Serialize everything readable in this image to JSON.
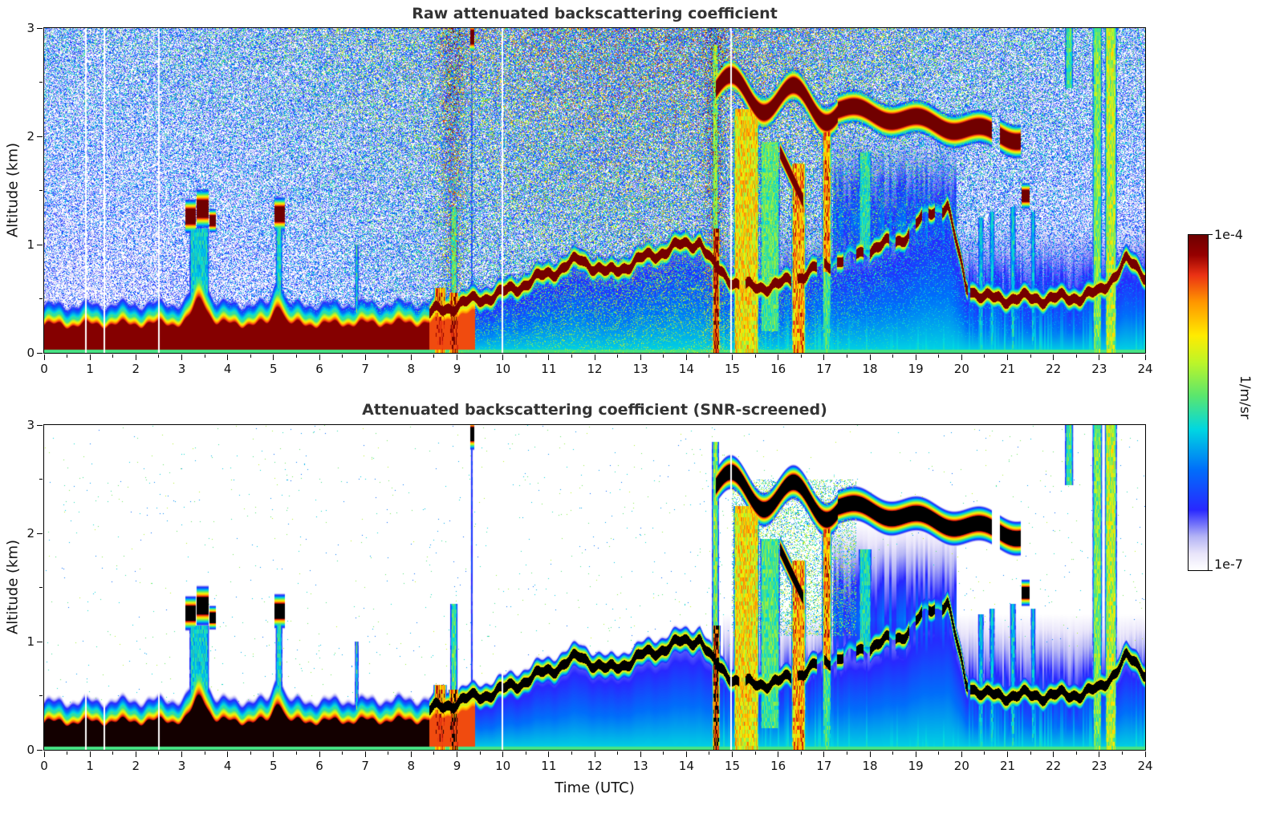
{
  "figure": {
    "background": "#ffffff"
  },
  "colorbar": {
    "max_label": "1e-4",
    "min_label": "1e-7",
    "units_label": "1/m/sr",
    "top_color": "#6e0000",
    "bottom_color": "#ffffff"
  },
  "chart_data": [
    {
      "type": "heatmap",
      "title": "Raw attenuated backscattering coefficient",
      "xlabel": "",
      "ylabel": "Altitude (km)",
      "x_range": [
        0,
        24
      ],
      "y_range": [
        0,
        3
      ],
      "x_ticks": [
        0,
        1,
        2,
        3,
        4,
        5,
        6,
        7,
        8,
        9,
        10,
        11,
        12,
        13,
        14,
        15,
        16,
        17,
        18,
        19,
        20,
        21,
        22,
        23,
        24
      ],
      "x_minor_step": 0.5,
      "y_ticks": [
        0,
        1,
        2,
        3
      ],
      "y_minor_step": 0.5,
      "value_scale": {
        "min": "1e-7",
        "max": "1e-4",
        "units": "1/m/sr",
        "scale": "log"
      },
      "grid": false,
      "legend": "shared colorbar right, 1e-7 to 1e-4 1/m/sr",
      "description": "Ceilometer attenuated backscatter, time (UTC) vs altitude (km). Strong aerosol layer (~1e-4 1/m/sr, dark red) from surface to ~0.35 km between 00-08 UTC, rising with convection to ~1.0 km by 14 UTC; shallow clouds at ~1.3 km near 03:10-03:45 and 05:05-05:15; strong surface plumes 08:30-09:05; cloud deck descending from ~2.45 km at 15 UTC to ~2.0 km at 21 UTC with precipitation/virga shafts 15-17 UTC; blue precipitation haze below 1.2 km after 15 UTC; deep precipitation columns to 3 km near 22:50-23:25; dense low-SNR noise speckle fills the free troposphere, warmer colored at higher altitude and midday."
    },
    {
      "type": "heatmap",
      "title": "Attenuated backscattering coefficient (SNR-screened)",
      "xlabel": "Time (UTC)",
      "ylabel": "Altitude (km)",
      "x_range": [
        0,
        24
      ],
      "y_range": [
        0,
        3
      ],
      "x_ticks": [
        0,
        1,
        2,
        3,
        4,
        5,
        6,
        7,
        8,
        9,
        10,
        11,
        12,
        13,
        14,
        15,
        16,
        17,
        18,
        19,
        20,
        21,
        22,
        23,
        24
      ],
      "x_minor_step": 0.5,
      "y_ticks": [
        0,
        1,
        2,
        3
      ],
      "y_minor_step": 0.5,
      "value_scale": {
        "min": "1e-7",
        "max": "1e-4",
        "units": "1/m/sr",
        "scale": "log"
      },
      "grid": false,
      "legend": "shared colorbar right, 1e-7 to 1e-4 1/m/sr",
      "description": "Same field after SNR screening: low-SNR noise removed (white background); saturated returns (boundary-layer aerosol core, boundary-layer top line and cloud layers) appear black with colored fringes; virga, precipitation shafts and blue sub-cloud haze retained."
    }
  ],
  "render_model": {
    "colormap_stops": [
      [
        0.0,
        255,
        255,
        255
      ],
      [
        0.05,
        232,
        228,
        250
      ],
      [
        0.1,
        180,
        180,
        245
      ],
      [
        0.18,
        40,
        40,
        255
      ],
      [
        0.3,
        0,
        110,
        250
      ],
      [
        0.42,
        0,
        215,
        225
      ],
      [
        0.52,
        90,
        230,
        110
      ],
      [
        0.62,
        190,
        245,
        40
      ],
      [
        0.7,
        255,
        235,
        0
      ],
      [
        0.8,
        255,
        150,
        0
      ],
      [
        0.88,
        235,
        50,
        20
      ],
      [
        0.94,
        150,
        0,
        0
      ],
      [
        1.0,
        110,
        0,
        0
      ]
    ],
    "blh_points": [
      [
        0,
        0.33
      ],
      [
        2.8,
        0.35
      ],
      [
        5.6,
        0.34
      ],
      [
        8.4,
        0.36
      ],
      [
        9.0,
        0.44
      ],
      [
        10.0,
        0.55
      ],
      [
        11.0,
        0.73
      ],
      [
        11.7,
        0.86
      ],
      [
        12.3,
        0.73
      ],
      [
        13.0,
        0.86
      ],
      [
        13.8,
        0.98
      ],
      [
        14.3,
        1.03
      ],
      [
        14.55,
        0.82
      ],
      [
        15.2,
        0.6
      ],
      [
        16.0,
        0.62
      ],
      [
        17.0,
        0.8
      ],
      [
        18.0,
        0.95
      ],
      [
        18.7,
        1.05
      ],
      [
        19.3,
        1.3
      ],
      [
        19.7,
        1.35
      ],
      [
        20.1,
        0.62
      ],
      [
        20.5,
        0.5
      ],
      [
        22.3,
        0.5
      ],
      [
        23.0,
        0.55
      ],
      [
        23.6,
        0.85
      ],
      [
        24,
        0.72
      ]
    ],
    "blh_bumps": [
      [
        3.4,
        0.3,
        0.045
      ],
      [
        5.1,
        0.26,
        0.018
      ]
    ],
    "blh_wiggle": [
      0.035,
      8.3,
      0.02,
      23
    ],
    "band": {
      "core": 0.965,
      "core_weak": 0.86,
      "weak_t0": 8.4,
      "weak_t1": 9.6,
      "convective_start": 9.4
    },
    "clouds": [
      [
        3.08,
        3.3,
        1.26,
        0,
        0.13,
        0,
        0,
        0
      ],
      [
        3.32,
        3.58,
        1.33,
        0,
        0.15,
        0,
        0,
        0
      ],
      [
        3.6,
        3.74,
        1.22,
        0,
        0.09,
        0,
        0,
        0
      ],
      [
        5.02,
        5.24,
        1.28,
        0,
        0.13,
        0,
        0,
        0
      ],
      [
        9.29,
        9.37,
        2.92,
        0,
        0.12,
        0,
        0,
        0
      ],
      [
        14.65,
        21.3,
        2.44,
        -0.068,
        0.13,
        0.15,
        4.6,
        1
      ],
      [
        16.05,
        16.55,
        1.85,
        -0.9,
        0.1,
        0,
        0,
        0
      ],
      [
        21.32,
        21.48,
        1.45,
        0,
        0.1,
        0,
        0,
        0
      ]
    ],
    "columns": [
      [
        3.15,
        3.6,
        0.5,
        1.15,
        0.42
      ],
      [
        5.03,
        5.2,
        0.4,
        1.18,
        0.45
      ],
      [
        6.76,
        6.86,
        0.3,
        1.0,
        0.5
      ],
      [
        8.48,
        8.78,
        0,
        0.6,
        0.8
      ],
      [
        8.8,
        9.06,
        0,
        0.55,
        0.88
      ],
      [
        8.84,
        9.02,
        0.55,
        1.35,
        0.5
      ],
      [
        9.29,
        9.35,
        0,
        3,
        0.48
      ],
      [
        14.55,
        14.75,
        0,
        1.15,
        0.93
      ],
      [
        14.55,
        14.72,
        1.15,
        2.85,
        0.55
      ],
      [
        15.02,
        15.6,
        0,
        2.25,
        0.7
      ],
      [
        15.6,
        16.05,
        0.2,
        1.95,
        0.5
      ],
      [
        16.28,
        16.62,
        0,
        1.75,
        0.78
      ],
      [
        16.95,
        17.18,
        0.75,
        2.2,
        0.8
      ],
      [
        16.95,
        17.18,
        0,
        0.75,
        0.5
      ],
      [
        17.75,
        18.05,
        0.95,
        1.85,
        0.45
      ],
      [
        20.35,
        20.5,
        0,
        1.25,
        0.4
      ],
      [
        20.6,
        20.74,
        0,
        1.3,
        0.4
      ],
      [
        21.05,
        21.2,
        0,
        1.35,
        0.42
      ],
      [
        21.5,
        21.63,
        0,
        1.3,
        0.4
      ],
      [
        22.25,
        22.45,
        2.45,
        3,
        0.5
      ],
      [
        22.85,
        23.08,
        0,
        3,
        0.55
      ],
      [
        23.12,
        23.4,
        0,
        3,
        0.62
      ]
    ],
    "gaps": [
      [
        0.88,
        0.92
      ],
      [
        1.28,
        1.32
      ],
      [
        2.48,
        2.52
      ],
      [
        9.97,
        10.01
      ],
      [
        14.96,
        14.99
      ]
    ],
    "haze": {
      "t_start": 14.8,
      "z_top": 1.25,
      "amp": 0.36,
      "mid_t0": 17.2,
      "mid_t1": 19.9,
      "mid_zc": 1.2,
      "mid_hw": 0.9,
      "mid_amp": 0.26
    },
    "noise": {
      "base": 0.28,
      "alt": 0.3,
      "day_amp": 0.38,
      "day_center": 13,
      "day_width": 45,
      "smears": [
        [
          8.9,
          0.3,
          0.06
        ],
        [
          14.62,
          0.25,
          0.04
        ]
      ]
    },
    "screened_noise": {
      "t0": 15,
      "t1": 17.7,
      "z0": 1.05,
      "z1": 2.5,
      "density": 0.28
    }
  }
}
